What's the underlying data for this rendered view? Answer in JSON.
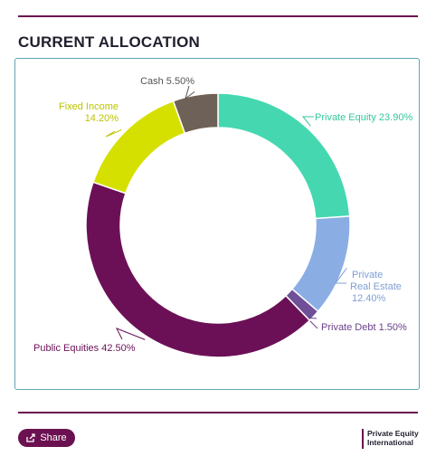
{
  "header": {
    "title": "CURRENT ALLOCATION"
  },
  "chart_data": {
    "type": "pie",
    "variant": "donut",
    "categories": [
      "Private Equity",
      "Private Real Estate",
      "Private Debt",
      "Public Equities",
      "Fixed Income",
      "Cash"
    ],
    "values": [
      23.9,
      12.4,
      1.5,
      42.5,
      14.2,
      5.5
    ],
    "value_labels": [
      "23.90%",
      "12.40%",
      "1.50%",
      "42.50%",
      "14.20%",
      "5.50%"
    ],
    "colors": [
      "#45d8b0",
      "#8aaee4",
      "#6f4f97",
      "#6b1057",
      "#d5e000",
      "#6e6157"
    ],
    "label_colors": [
      "#35c79c",
      "#7f9fd6",
      "#6a3f8a",
      "#6b1057",
      "#bcc400",
      "#555555"
    ],
    "label_lines": [
      [
        "Private Equity 23.90%"
      ],
      [
        "Private",
        "Real Estate",
        "12.40%"
      ],
      [
        "Private Debt 1.50%"
      ],
      [
        "Public Equities 42.50%"
      ],
      [
        "Fixed Income",
        "14.20%"
      ],
      [
        "Cash 5.50%"
      ]
    ]
  },
  "footer": {
    "share_label": "Share",
    "share_icon": "share-icon",
    "brand_line1": "Private Equity",
    "brand_line2": "International"
  }
}
